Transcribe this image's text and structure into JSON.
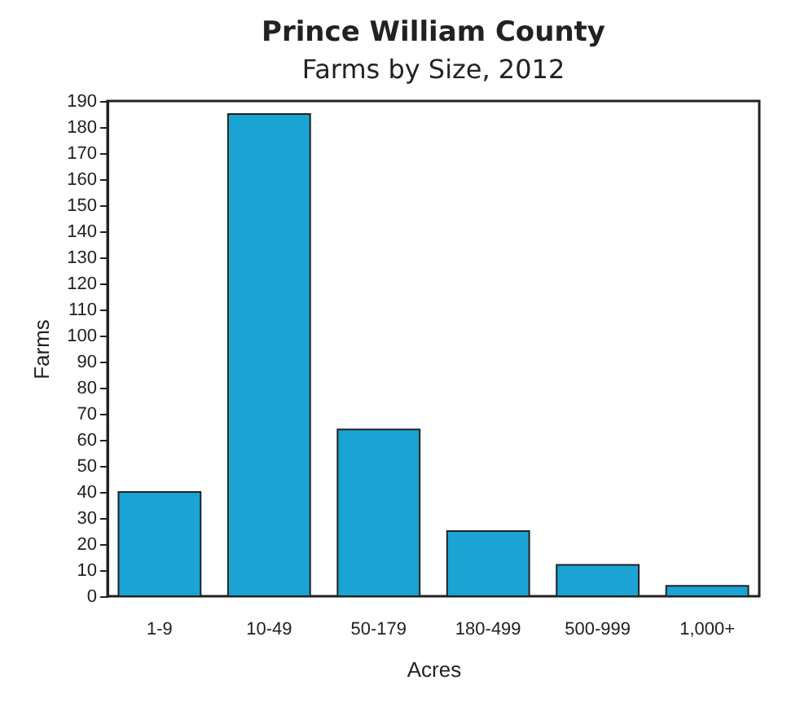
{
  "chart_data": {
    "type": "bar",
    "title": "Prince William County",
    "subtitle": "Farms by Size, 2012",
    "xlabel": "Acres",
    "ylabel": "Farms",
    "categories": [
      "1-9",
      "10-49",
      "50-179",
      "180-499",
      "500-999",
      "1,000+"
    ],
    "values": [
      40,
      185,
      64,
      25,
      12,
      4
    ],
    "color": "#1ba3d3",
    "ylim": [
      0,
      190
    ],
    "yticks": [
      0,
      10,
      20,
      30,
      40,
      50,
      60,
      70,
      80,
      90,
      100,
      110,
      120,
      130,
      140,
      150,
      160,
      170,
      180,
      190
    ],
    "grid": false
  }
}
